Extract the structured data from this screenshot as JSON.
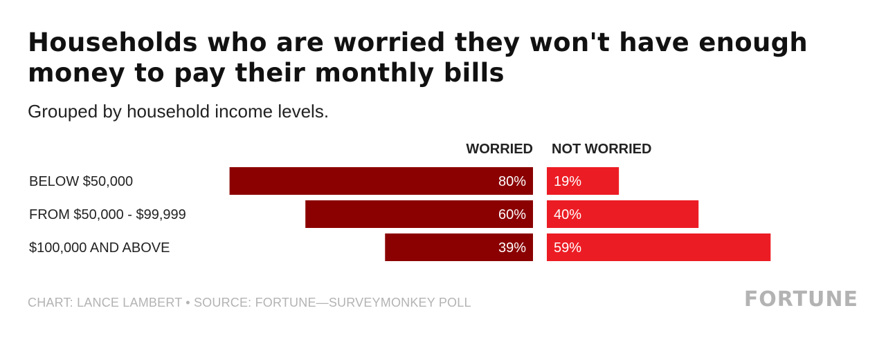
{
  "title": "Households who are worried they won't have enough money to pay their monthly bills",
  "subtitle": "Grouped by household income levels.",
  "footer": "CHART: LANCE LAMBERT • SOURCE: FORTUNE—SURVEYMONKEY POLL",
  "logo": "FORTUNE",
  "colors": {
    "worried": "#8b0000",
    "not_worried": "#ec1c24"
  },
  "chart_data": {
    "type": "bar",
    "categories": [
      "BELOW $50,000",
      "FROM $50,000 - $99,999",
      "$100,000 AND ABOVE"
    ],
    "series": [
      {
        "name": "WORRIED",
        "values": [
          80,
          60,
          39
        ],
        "labels": [
          "80%",
          "60%",
          "39%"
        ]
      },
      {
        "name": "NOT WORRIED",
        "values": [
          19,
          40,
          59
        ],
        "labels": [
          "19%",
          "40%",
          "59%"
        ]
      }
    ],
    "unit": "%",
    "xlim": [
      0,
      100
    ],
    "legend": "column headers above bars"
  }
}
